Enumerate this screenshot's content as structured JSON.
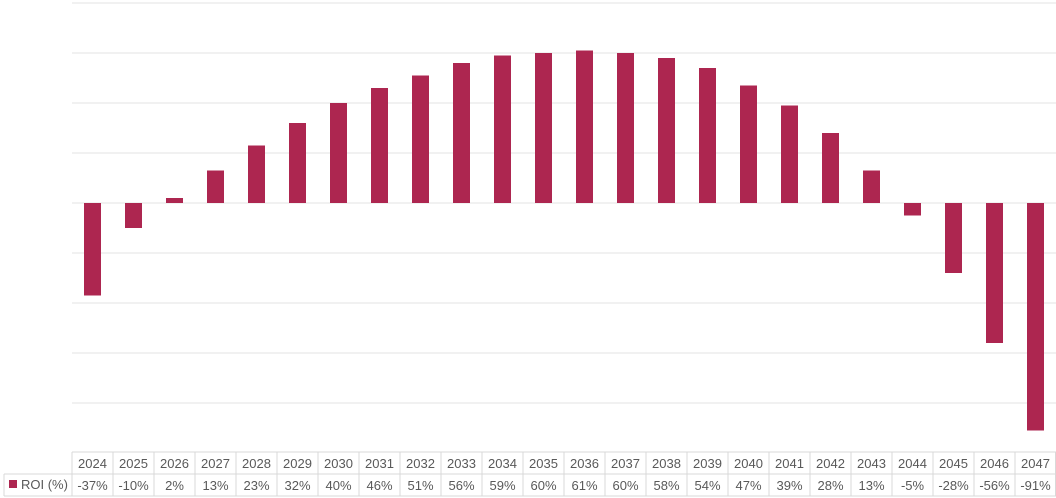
{
  "chart_data": {
    "type": "bar",
    "categories": [
      "2024",
      "2025",
      "2026",
      "2027",
      "2028",
      "2029",
      "2030",
      "2031",
      "2032",
      "2033",
      "2034",
      "2035",
      "2036",
      "2037",
      "2038",
      "2039",
      "2040",
      "2041",
      "2042",
      "2043",
      "2044",
      "2045",
      "2046",
      "2047"
    ],
    "series": [
      {
        "name": "ROI (%)",
        "values": [
          -37,
          -10,
          2,
          13,
          23,
          32,
          40,
          46,
          51,
          56,
          59,
          60,
          61,
          60,
          58,
          54,
          47,
          39,
          28,
          13,
          -5,
          -28,
          -56,
          -91
        ],
        "labels": [
          "-37%",
          "-10%",
          "2%",
          "13%",
          "23%",
          "32%",
          "40%",
          "46%",
          "51%",
          "56%",
          "59%",
          "60%",
          "61%",
          "60%",
          "58%",
          "54%",
          "47%",
          "39%",
          "28%",
          "13%",
          "-5%",
          "-28%",
          "-56%",
          "-91%"
        ],
        "color": "#AD2650"
      }
    ],
    "ylim": [
      -100,
      80
    ],
    "grid": true,
    "legend": "data-table-left",
    "data_table": true,
    "colors": {
      "bar": "#AD2650",
      "grid": "#E3E3E3",
      "text": "#595959",
      "table_border": "#D9D9D9"
    }
  }
}
